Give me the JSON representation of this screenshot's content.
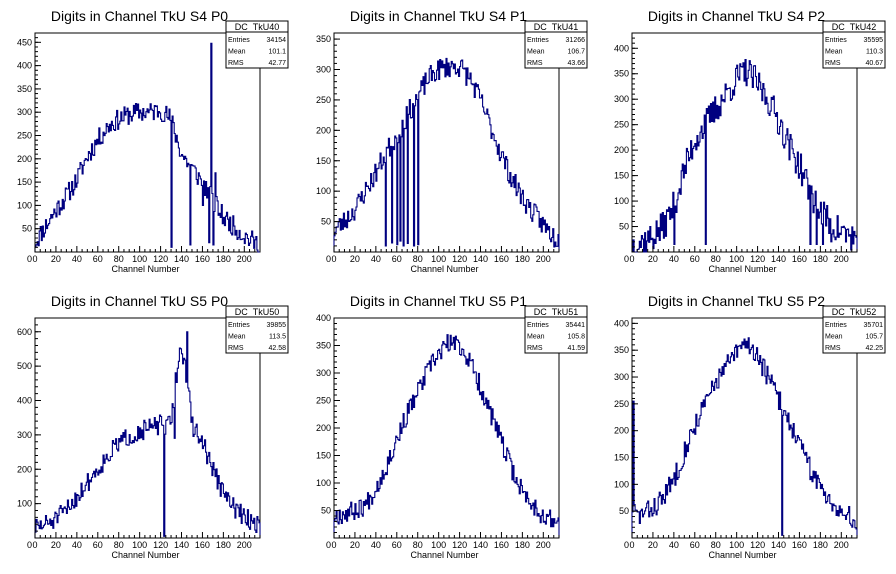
{
  "page": {
    "background": "#ffffff",
    "histogram_color": "#000080"
  },
  "chart_data": [
    {
      "type": "histogram",
      "title": "Digits in Channel TkU S4 P0",
      "xlabel": "Channel Number",
      "ylabel": "",
      "xlim": [
        0,
        215
      ],
      "ylim": [
        0,
        470
      ],
      "xticks": [
        0,
        20,
        40,
        60,
        80,
        100,
        120,
        140,
        160,
        180,
        200
      ],
      "yticks": [
        50,
        100,
        150,
        200,
        250,
        300,
        350,
        400,
        450
      ],
      "stats": {
        "name": "DC_TkU40",
        "entries": "34154",
        "mean": "101.1",
        "rms": "42.77"
      },
      "curve": [
        [
          0,
          20
        ],
        [
          10,
          55
        ],
        [
          20,
          90
        ],
        [
          30,
          120
        ],
        [
          40,
          155
        ],
        [
          50,
          205
        ],
        [
          60,
          240
        ],
        [
          70,
          270
        ],
        [
          80,
          285
        ],
        [
          90,
          295
        ],
        [
          100,
          300
        ],
        [
          110,
          300
        ],
        [
          120,
          305
        ],
        [
          130,
          285
        ],
        [
          140,
          210
        ],
        [
          150,
          180
        ],
        [
          160,
          150
        ],
        [
          170,
          110
        ],
        [
          180,
          75
        ],
        [
          190,
          55
        ],
        [
          200,
          35
        ],
        [
          210,
          20
        ],
        [
          215,
          15
        ]
      ],
      "spikes": [
        [
          130,
          10
        ],
        [
          148,
          15
        ],
        [
          160,
          100
        ],
        [
          166,
          20
        ],
        [
          168,
          448
        ],
        [
          170,
          15
        ],
        [
          172,
          170
        ]
      ],
      "noise": 22,
      "seed": 11
    },
    {
      "type": "histogram",
      "title": "Digits in Channel TkU S4 P1",
      "xlabel": "Channel Number",
      "ylabel": "",
      "xlim": [
        0,
        215
      ],
      "ylim": [
        0,
        360
      ],
      "xticks": [
        0,
        20,
        40,
        60,
        80,
        100,
        120,
        140,
        160,
        180,
        200
      ],
      "yticks": [
        50,
        100,
        150,
        200,
        250,
        300,
        350
      ],
      "stats": {
        "name": "DC_TkU41",
        "entries": "31266",
        "mean": "106.7",
        "rms": "43.66"
      },
      "curve": [
        [
          0,
          35
        ],
        [
          10,
          50
        ],
        [
          20,
          70
        ],
        [
          30,
          100
        ],
        [
          40,
          130
        ],
        [
          50,
          165
        ],
        [
          60,
          190
        ],
        [
          70,
          225
        ],
        [
          80,
          255
        ],
        [
          90,
          285
        ],
        [
          100,
          300
        ],
        [
          110,
          305
        ],
        [
          120,
          305
        ],
        [
          130,
          285
        ],
        [
          140,
          250
        ],
        [
          150,
          205
        ],
        [
          160,
          160
        ],
        [
          170,
          120
        ],
        [
          180,
          90
        ],
        [
          190,
          65
        ],
        [
          200,
          45
        ],
        [
          210,
          25
        ],
        [
          215,
          20
        ]
      ],
      "spikes": [
        [
          49,
          10
        ],
        [
          55,
          15
        ],
        [
          60,
          12
        ],
        [
          63,
          18
        ],
        [
          66,
          10
        ],
        [
          70,
          14
        ],
        [
          76,
          10
        ],
        [
          80,
          12
        ]
      ],
      "noise": 18,
      "seed": 23
    },
    {
      "type": "histogram",
      "title": "Digits in Channel TkU S4 P2",
      "xlabel": "Channel Number",
      "ylabel": "",
      "xlim": [
        0,
        215
      ],
      "ylim": [
        0,
        430
      ],
      "xticks": [
        0,
        20,
        40,
        60,
        80,
        100,
        120,
        140,
        160,
        180,
        200
      ],
      "yticks": [
        50,
        100,
        150,
        200,
        250,
        300,
        350,
        400
      ],
      "stats": {
        "name": "DC_TkU42",
        "entries": "35595",
        "mean": "110.3",
        "rms": "40.67"
      },
      "curve": [
        [
          0,
          15
        ],
        [
          10,
          20
        ],
        [
          20,
          30
        ],
        [
          30,
          50
        ],
        [
          40,
          90
        ],
        [
          50,
          160
        ],
        [
          60,
          220
        ],
        [
          70,
          250
        ],
        [
          80,
          280
        ],
        [
          90,
          310
        ],
        [
          100,
          340
        ],
        [
          110,
          355
        ],
        [
          120,
          330
        ],
        [
          130,
          300
        ],
        [
          140,
          260
        ],
        [
          150,
          210
        ],
        [
          160,
          170
        ],
        [
          170,
          120
        ],
        [
          180,
          80
        ],
        [
          190,
          55
        ],
        [
          200,
          40
        ],
        [
          210,
          30
        ],
        [
          215,
          25
        ]
      ],
      "spikes": [
        [
          40,
          15
        ],
        [
          70,
          15
        ],
        [
          170,
          15
        ],
        [
          176,
          15
        ],
        [
          182,
          15
        ],
        [
          190,
          20
        ]
      ],
      "noise": 30,
      "seed": 37
    },
    {
      "type": "histogram",
      "title": "Digits in Channel TkU S5 P0",
      "xlabel": "Channel Number",
      "ylabel": "",
      "xlim": [
        0,
        215
      ],
      "ylim": [
        0,
        640
      ],
      "xticks": [
        0,
        20,
        40,
        60,
        80,
        100,
        120,
        140,
        160,
        180,
        200
      ],
      "yticks": [
        100,
        200,
        300,
        400,
        500,
        600
      ],
      "stats": {
        "name": "DC_TkU50",
        "entries": "39855",
        "mean": "113.5",
        "rms": "42.58"
      },
      "curve": [
        [
          0,
          30
        ],
        [
          10,
          40
        ],
        [
          20,
          55
        ],
        [
          30,
          80
        ],
        [
          40,
          120
        ],
        [
          50,
          160
        ],
        [
          60,
          200
        ],
        [
          70,
          240
        ],
        [
          80,
          275
        ],
        [
          90,
          295
        ],
        [
          100,
          310
        ],
        [
          110,
          320
        ],
        [
          120,
          330
        ],
        [
          125,
          320
        ],
        [
          130,
          340
        ],
        [
          135,
          470
        ],
        [
          140,
          560
        ],
        [
          145,
          470
        ],
        [
          150,
          330
        ],
        [
          160,
          280
        ],
        [
          170,
          200
        ],
        [
          180,
          130
        ],
        [
          190,
          90
        ],
        [
          200,
          60
        ],
        [
          210,
          45
        ],
        [
          215,
          35
        ]
      ],
      "spikes": [
        [
          123,
          5
        ],
        [
          145,
          600
        ],
        [
          133,
          290
        ]
      ],
      "noise": 28,
      "seed": 51
    },
    {
      "type": "histogram",
      "title": "Digits in Channel TkU S5 P1",
      "xlabel": "Channel Number",
      "ylabel": "",
      "xlim": [
        0,
        215
      ],
      "ylim": [
        0,
        400
      ],
      "xticks": [
        0,
        20,
        40,
        60,
        80,
        100,
        120,
        140,
        160,
        180,
        200
      ],
      "yticks": [
        50,
        100,
        150,
        200,
        250,
        300,
        350,
        400
      ],
      "stats": {
        "name": "DC_TkU51",
        "entries": "35441",
        "mean": "105.8",
        "rms": "41.59"
      },
      "curve": [
        [
          0,
          40
        ],
        [
          10,
          45
        ],
        [
          20,
          50
        ],
        [
          30,
          60
        ],
        [
          40,
          90
        ],
        [
          50,
          130
        ],
        [
          60,
          180
        ],
        [
          70,
          225
        ],
        [
          80,
          265
        ],
        [
          90,
          305
        ],
        [
          100,
          335
        ],
        [
          110,
          355
        ],
        [
          120,
          350
        ],
        [
          130,
          320
        ],
        [
          140,
          275
        ],
        [
          150,
          225
        ],
        [
          160,
          175
        ],
        [
          170,
          125
        ],
        [
          180,
          85
        ],
        [
          190,
          60
        ],
        [
          200,
          40
        ],
        [
          210,
          30
        ],
        [
          215,
          25
        ]
      ],
      "spikes": [],
      "noise": 18,
      "seed": 67
    },
    {
      "type": "histogram",
      "title": "Digits in Channel TkU S5 P2",
      "xlabel": "Channel Number",
      "ylabel": "",
      "xlim": [
        0,
        215
      ],
      "ylim": [
        0,
        410
      ],
      "xticks": [
        0,
        20,
        40,
        60,
        80,
        100,
        120,
        140,
        160,
        180,
        200
      ],
      "yticks": [
        50,
        100,
        150,
        200,
        250,
        300,
        350,
        400
      ],
      "stats": {
        "name": "DC_TkU52",
        "entries": "35701",
        "mean": "105.7",
        "rms": "42.25"
      },
      "curve": [
        [
          0,
          60
        ],
        [
          5,
          40
        ],
        [
          10,
          45
        ],
        [
          20,
          55
        ],
        [
          30,
          75
        ],
        [
          40,
          110
        ],
        [
          50,
          160
        ],
        [
          60,
          210
        ],
        [
          70,
          250
        ],
        [
          80,
          290
        ],
        [
          90,
          320
        ],
        [
          100,
          345
        ],
        [
          110,
          365
        ],
        [
          120,
          340
        ],
        [
          130,
          300
        ],
        [
          140,
          260
        ],
        [
          150,
          220
        ],
        [
          160,
          175
        ],
        [
          170,
          130
        ],
        [
          180,
          95
        ],
        [
          190,
          70
        ],
        [
          200,
          50
        ],
        [
          210,
          35
        ],
        [
          215,
          25
        ]
      ],
      "spikes": [
        [
          1,
          255
        ],
        [
          143,
          5
        ]
      ],
      "noise": 20,
      "seed": 83
    }
  ]
}
